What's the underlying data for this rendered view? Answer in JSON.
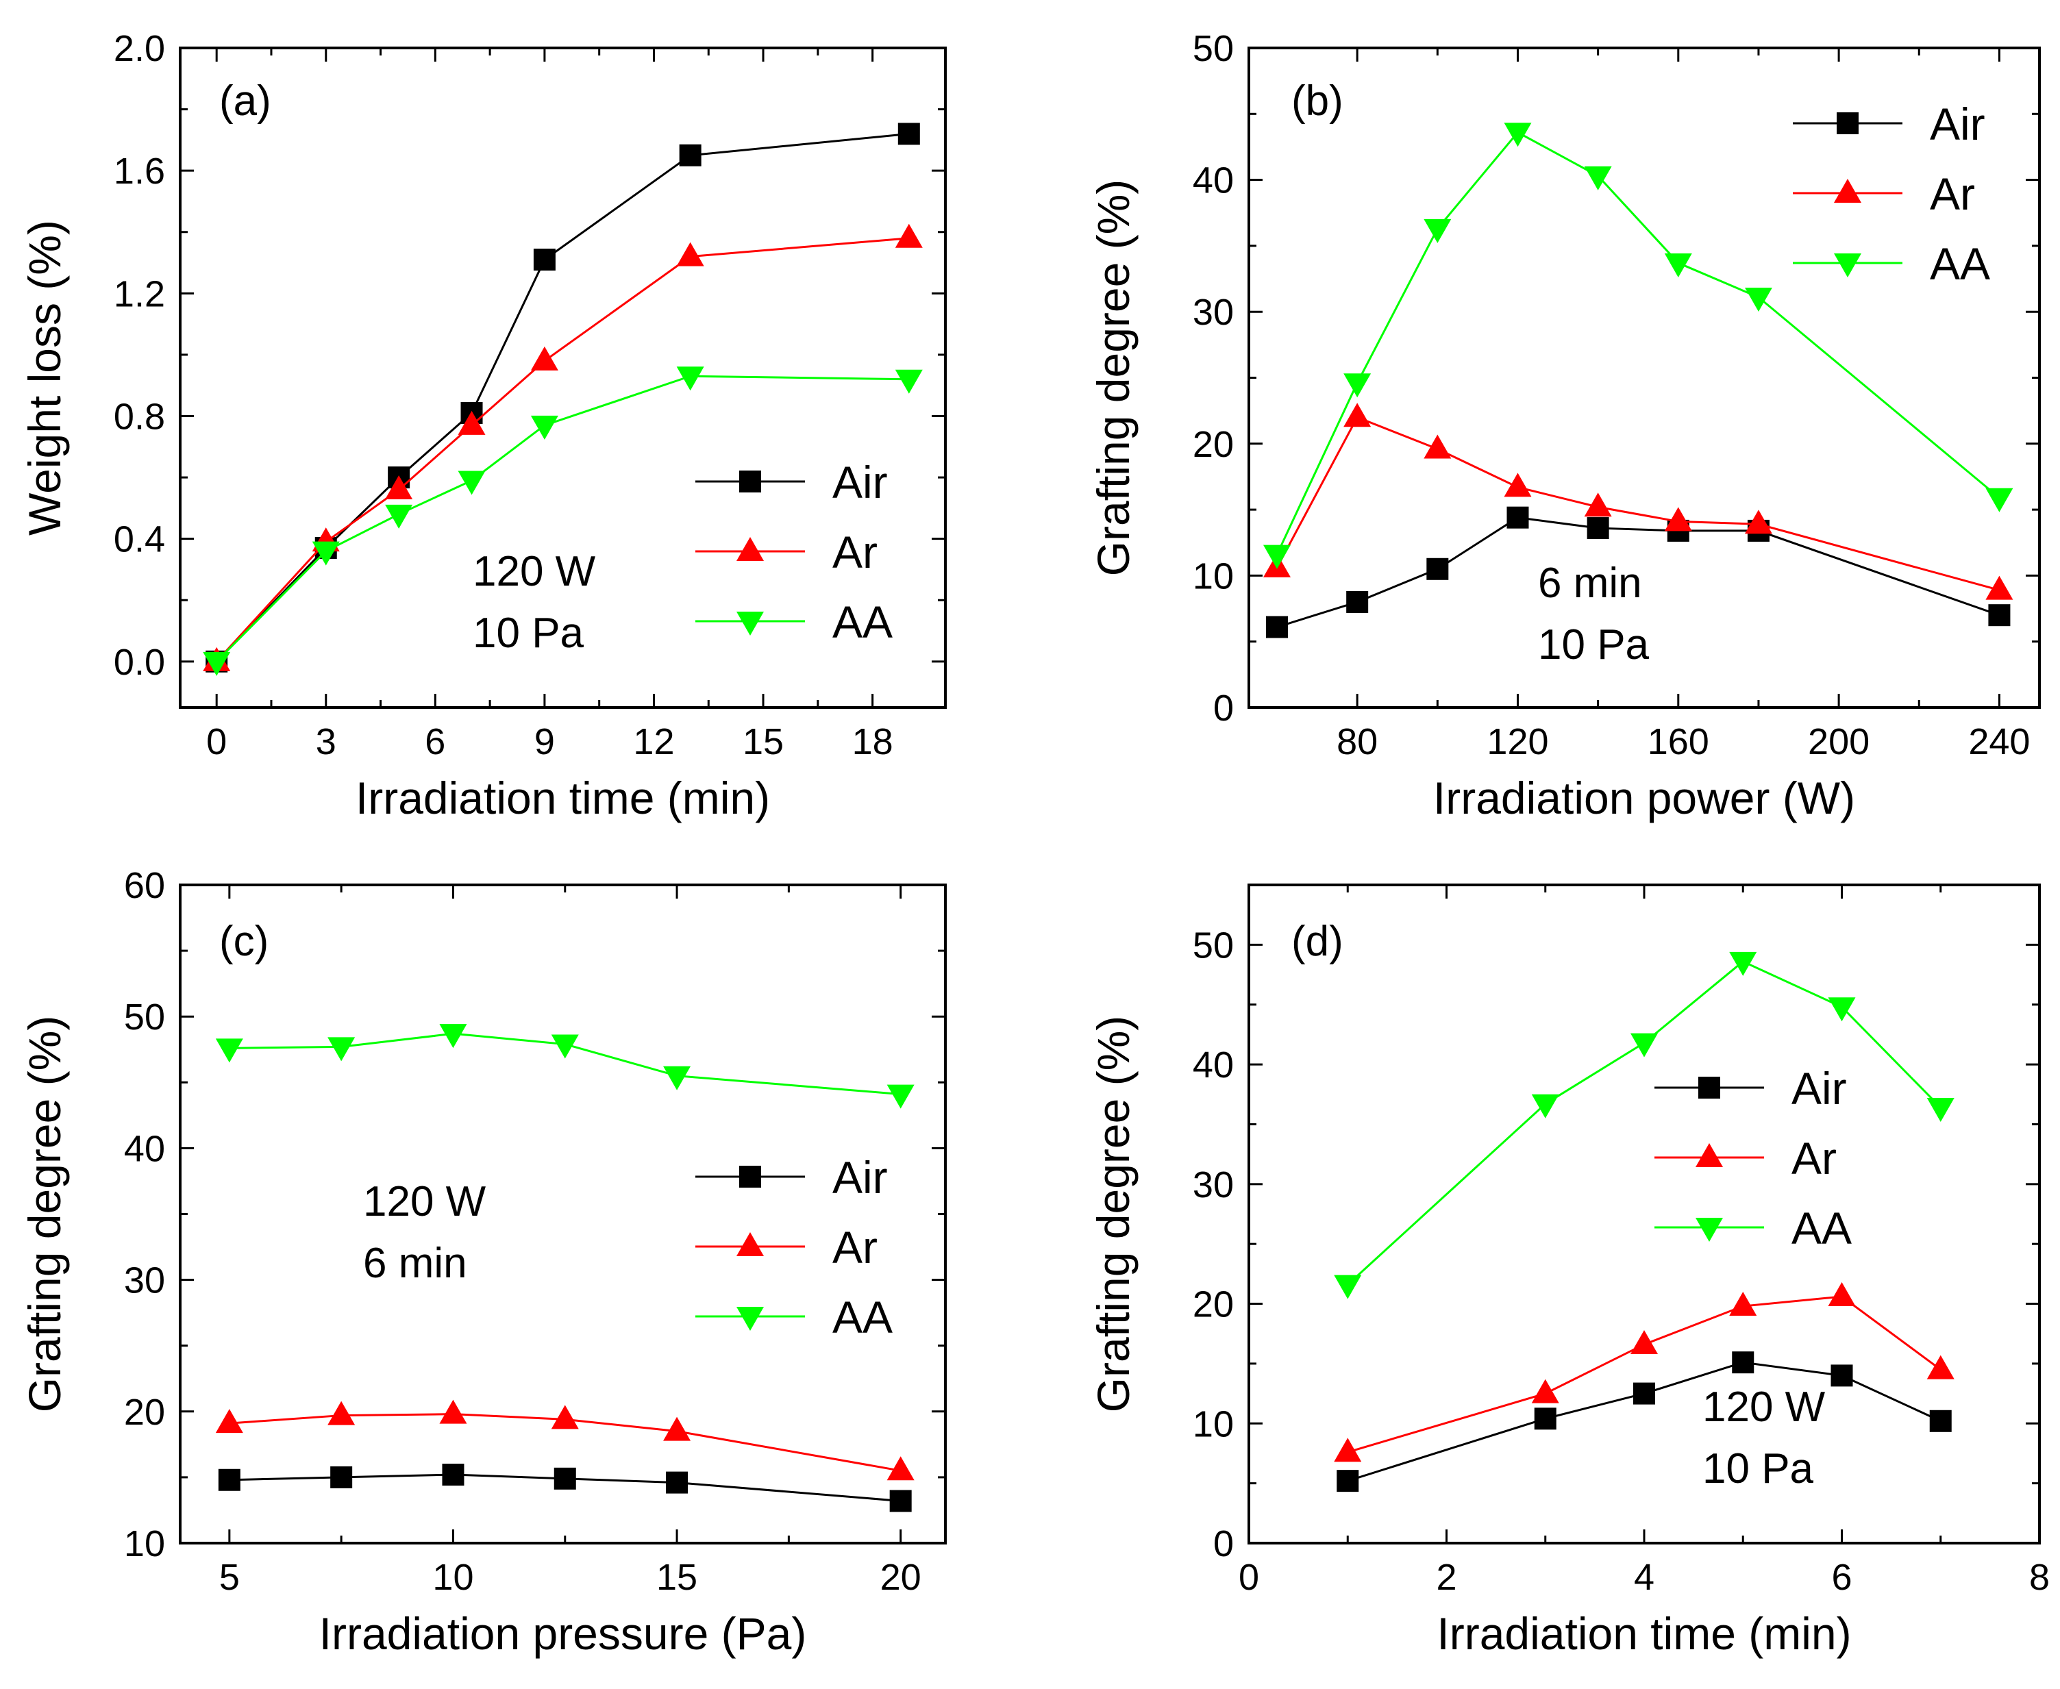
{
  "chart_data": [
    {
      "id": "a",
      "type": "line",
      "panel_label": "(a)",
      "xlabel": "Irradiation time (min)",
      "ylabel": "Weight loss (%)",
      "xlim": [
        -1,
        20
      ],
      "ylim": [
        -0.15,
        2.0
      ],
      "xticks": [
        0,
        3,
        6,
        9,
        12,
        15,
        18
      ],
      "xtick_labels": [
        "0",
        "3",
        "6",
        "9",
        "12",
        "15",
        "18"
      ],
      "yticks": [
        0.0,
        0.4,
        0.8,
        1.2,
        1.6,
        2.0
      ],
      "ytick_labels": [
        "0.0",
        "0.4",
        "0.8",
        "1.2",
        "1.6",
        "2.0"
      ],
      "x": [
        0,
        3,
        5,
        7,
        9,
        13,
        19
      ],
      "series": [
        {
          "name": "Air",
          "color": "#000000",
          "marker": "square",
          "values": [
            0.0,
            0.37,
            0.6,
            0.81,
            1.31,
            1.65,
            1.72
          ]
        },
        {
          "name": "Ar",
          "color": "#ff0000",
          "marker": "triangle-up",
          "values": [
            0.0,
            0.39,
            0.56,
            0.77,
            0.98,
            1.32,
            1.38
          ]
        },
        {
          "name": "AA",
          "color": "#00ff00",
          "marker": "triangle-down",
          "values": [
            0.0,
            0.36,
            0.48,
            0.59,
            0.77,
            0.93,
            0.92
          ]
        }
      ],
      "annotation_lines": [
        "120 W",
        "10 Pa"
      ],
      "legend_position": "lower-right"
    },
    {
      "id": "b",
      "type": "line",
      "panel_label": "(b)",
      "xlabel": "Irradiation power (W)",
      "ylabel": "Grafting degree (%)",
      "xlim": [
        53,
        250
      ],
      "ylim": [
        0,
        50
      ],
      "xticks": [
        80,
        120,
        160,
        200,
        240
      ],
      "xtick_labels": [
        "80",
        "120",
        "160",
        "200",
        "240"
      ],
      "yticks": [
        0,
        10,
        20,
        30,
        40,
        50
      ],
      "ytick_labels": [
        "0",
        "10",
        "20",
        "30",
        "40",
        "50"
      ],
      "x": [
        60,
        80,
        100,
        120,
        140,
        160,
        180,
        240
      ],
      "series": [
        {
          "name": "Air",
          "color": "#000000",
          "marker": "square",
          "values": [
            6.1,
            8.0,
            10.5,
            14.4,
            13.6,
            13.4,
            13.4,
            7.0
          ]
        },
        {
          "name": "Ar",
          "color": "#ff0000",
          "marker": "triangle-up",
          "values": [
            10.6,
            22.0,
            19.6,
            16.7,
            15.2,
            14.1,
            13.9,
            8.9
          ]
        },
        {
          "name": "AA",
          "color": "#00ff00",
          "marker": "triangle-down",
          "values": [
            11.6,
            24.6,
            36.3,
            43.6,
            40.3,
            33.7,
            31.1,
            15.9
          ]
        }
      ],
      "annotation_lines": [
        "6 min",
        "10 Pa"
      ],
      "legend_position": "top-right"
    },
    {
      "id": "c",
      "type": "line",
      "panel_label": "(c)",
      "xlabel": "Irradiation pressure (Pa)",
      "ylabel": "Grafting degree (%)",
      "xlim": [
        3.9,
        21.0
      ],
      "ylim": [
        10,
        60
      ],
      "xticks": [
        5,
        10,
        15,
        20
      ],
      "xtick_labels": [
        "5",
        "10",
        "15",
        "20"
      ],
      "yticks": [
        10,
        20,
        30,
        40,
        50,
        60
      ],
      "ytick_labels": [
        "10",
        "20",
        "30",
        "40",
        "50",
        "60"
      ],
      "x": [
        5,
        7.5,
        10,
        12.5,
        15,
        20
      ],
      "series": [
        {
          "name": "Air",
          "color": "#000000",
          "marker": "square",
          "values": [
            14.8,
            15.0,
            15.2,
            14.9,
            14.6,
            13.2
          ]
        },
        {
          "name": "Ar",
          "color": "#ff0000",
          "marker": "triangle-up",
          "values": [
            19.1,
            19.7,
            19.8,
            19.4,
            18.5,
            15.5
          ]
        },
        {
          "name": "AA",
          "color": "#00ff00",
          "marker": "triangle-down",
          "values": [
            47.6,
            47.7,
            48.7,
            47.9,
            45.5,
            44.1
          ]
        }
      ],
      "annotation_lines": [
        "120 W",
        "6 min"
      ],
      "legend_position": "center-right"
    },
    {
      "id": "d",
      "type": "line",
      "panel_label": "(d)",
      "xlabel": "Irradiation time (min)",
      "ylabel": "Grafting degree (%)",
      "xlim": [
        0,
        8
      ],
      "ylim": [
        0,
        55
      ],
      "xticks": [
        0,
        2,
        4,
        6,
        8
      ],
      "xtick_labels": [
        "0",
        "2",
        "4",
        "6",
        "8"
      ],
      "yticks": [
        0,
        10,
        20,
        30,
        40,
        50
      ],
      "ytick_labels": [
        "0",
        "10",
        "20",
        "30",
        "40",
        "50"
      ],
      "x": [
        1,
        3,
        4,
        5,
        6,
        7
      ],
      "series": [
        {
          "name": "Air",
          "color": "#000000",
          "marker": "square",
          "values": [
            5.2,
            10.4,
            12.5,
            15.1,
            14.0,
            10.2
          ]
        },
        {
          "name": "Ar",
          "color": "#ff0000",
          "marker": "triangle-up",
          "values": [
            7.6,
            12.5,
            16.6,
            19.8,
            20.6,
            14.5
          ]
        },
        {
          "name": "AA",
          "color": "#00ff00",
          "marker": "triangle-down",
          "values": [
            21.6,
            36.7,
            41.8,
            48.6,
            44.8,
            36.4
          ]
        }
      ],
      "annotation_lines": [
        "120 W",
        "10 Pa"
      ],
      "legend_position": "center-right"
    }
  ]
}
